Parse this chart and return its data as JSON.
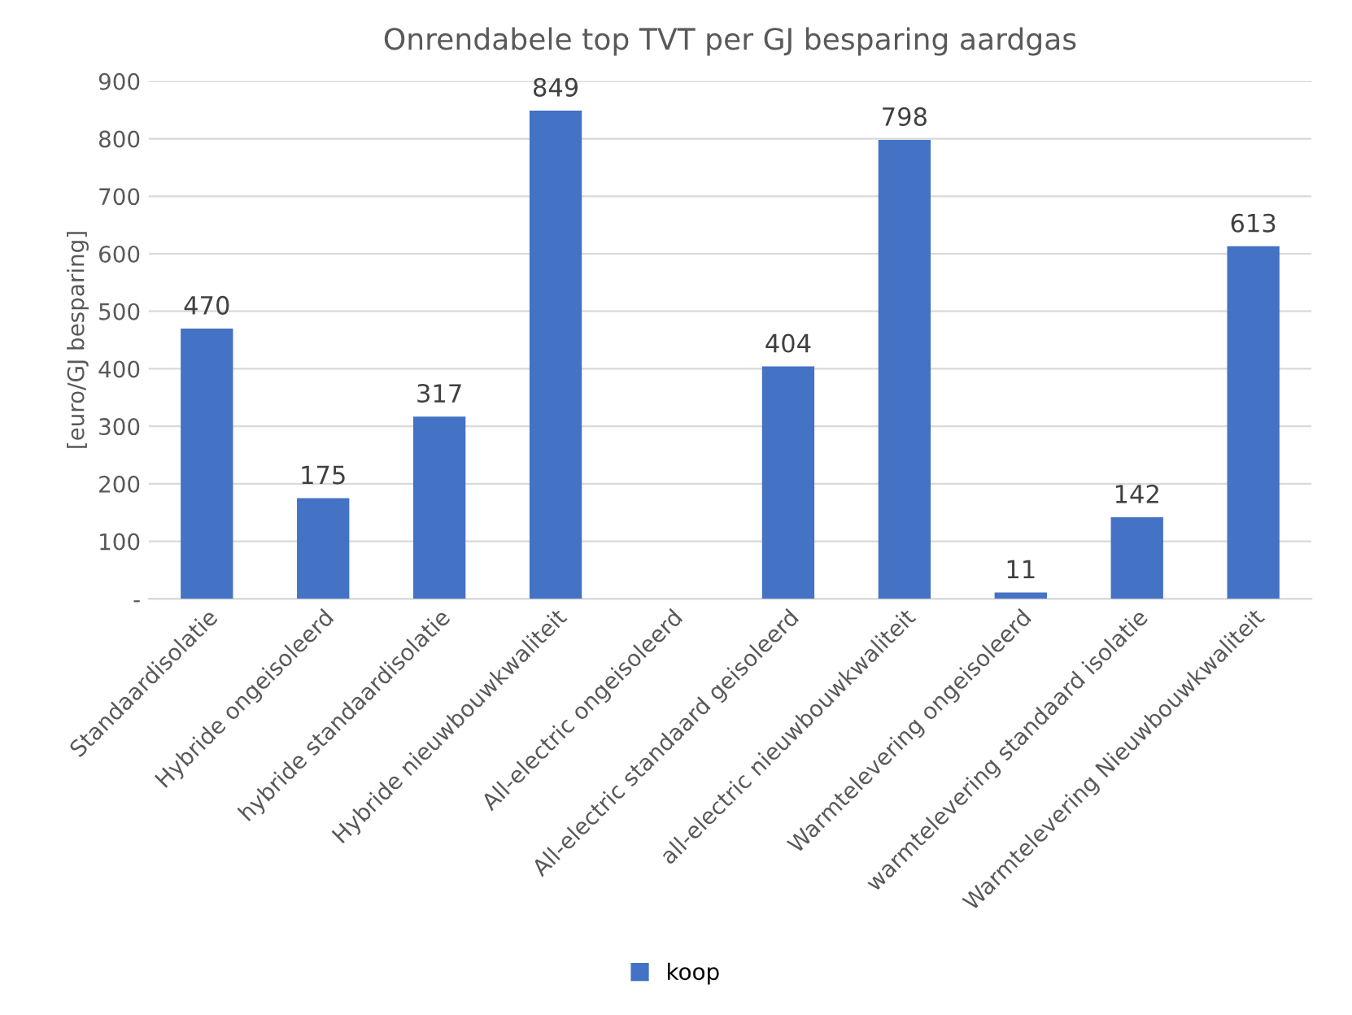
{
  "chart_data": {
    "type": "bar",
    "title": "Onrendabele top TVT per GJ besparing aardgas",
    "ylabel": "[euro/GJ besparing]",
    "categories": [
      "Standaardisolatie",
      "Hybride ongeisoleerd",
      "hybride standaardisolatie",
      "Hybride nieuwbouwkwaliteit",
      "All-electric ongeisoleerd",
      "All-electric standaard geisoleerd",
      "all-electric nieuwbouwkwaliteit",
      "Warmtelevering ongeisoleerd",
      "warmtelevering standaard isolatie",
      "Warmtelevering Nieuwbouwkwaliteit"
    ],
    "series": [
      {
        "name": "koop",
        "color": "#4472c4",
        "values": [
          470,
          175,
          317,
          849,
          null,
          404,
          798,
          11,
          142,
          613
        ]
      }
    ],
    "ylim": [
      0,
      900
    ],
    "yticks": [
      {
        "value": 0,
        "label": "-"
      },
      100,
      200,
      300,
      400,
      500,
      600,
      700,
      800,
      900
    ],
    "grid": "y",
    "legend": "bottom",
    "data_labels": true
  }
}
